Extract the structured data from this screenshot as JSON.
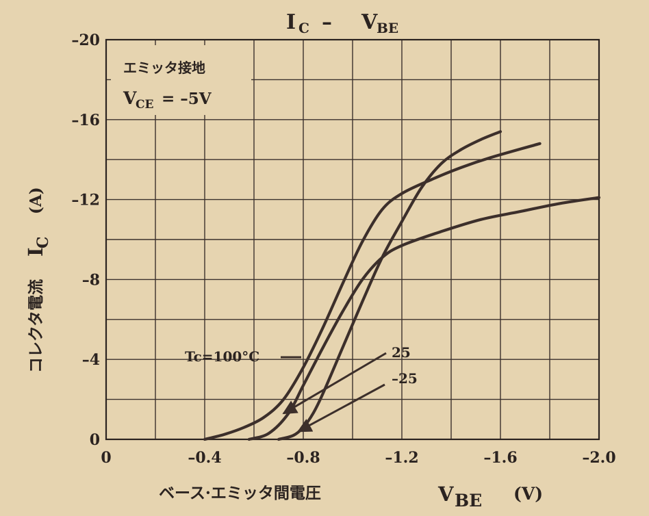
{
  "chart_data": {
    "type": "line",
    "title_main": "I",
    "title_main_sub": "C",
    "title_sep": " – ",
    "title_second": "V",
    "title_second_sub": "BE",
    "legend_box": {
      "line1": "エミッタ接地",
      "vce_main": "V",
      "vce_sub": "CE",
      "vce_value": "= –5V"
    },
    "xlabel_jp": "ベース·エミッタ間電圧",
    "xlabel_sym": "V",
    "xlabel_sym_sub": "BE",
    "xlabel_unit": "(V)",
    "ylabel_jp": "コレクタ電流",
    "ylabel_sym": "I",
    "ylabel_sym_sub": "C",
    "ylabel_unit": "(A)",
    "xlim": [
      0,
      -2.0
    ],
    "ylim": [
      0,
      -20
    ],
    "x_ticks": [
      0,
      -0.4,
      -0.8,
      -1.2,
      -1.6,
      -2.0
    ],
    "x_tick_labels": [
      "0",
      "–0.4",
      "–0.8",
      "–1.2",
      "–1.6",
      "–2.0"
    ],
    "y_ticks": [
      0,
      -4,
      -8,
      -12,
      -16,
      -20
    ],
    "y_tick_labels": [
      "0",
      "–4",
      "–8",
      "–12",
      "–16",
      "–20"
    ],
    "grid": true,
    "series": [
      {
        "name": "Tc=100°C",
        "x": [
          -0.4,
          -0.48,
          -0.56,
          -0.64,
          -0.72,
          -0.8,
          -0.88,
          -0.96,
          -1.04,
          -1.12,
          -1.2,
          -1.32,
          -1.44,
          -1.56,
          -1.76
        ],
        "y": [
          0,
          -0.25,
          -0.6,
          -1.1,
          -2.0,
          -3.6,
          -5.6,
          -7.8,
          -9.9,
          -11.5,
          -12.3,
          -13.0,
          -13.6,
          -14.1,
          -14.8
        ]
      },
      {
        "name": "25",
        "x": [
          -0.58,
          -0.66,
          -0.74,
          -0.8,
          -0.88,
          -0.96,
          -1.04,
          -1.12,
          -1.2,
          -1.36,
          -1.52,
          -1.68,
          -1.84,
          -2.0
        ],
        "y": [
          0,
          -0.3,
          -1.3,
          -2.7,
          -4.6,
          -6.4,
          -8.0,
          -9.1,
          -9.7,
          -10.4,
          -11.0,
          -11.4,
          -11.8,
          -12.1
        ]
      },
      {
        "name": "–25",
        "x": [
          -0.7,
          -0.76,
          -0.8,
          -0.84,
          -0.88,
          -0.96,
          -1.04,
          -1.12,
          -1.2,
          -1.28,
          -1.36,
          -1.44,
          -1.52,
          -1.6
        ],
        "y": [
          0,
          -0.2,
          -0.6,
          -1.3,
          -2.3,
          -4.6,
          -6.9,
          -9.1,
          -10.9,
          -12.6,
          -13.8,
          -14.5,
          -15.0,
          -15.4
        ]
      }
    ],
    "annotations": [
      {
        "label": "Tc=100°C",
        "target_series": 0
      },
      {
        "label": "25",
        "target_series": 1
      },
      {
        "label": "–25",
        "target_series": 2
      }
    ]
  }
}
